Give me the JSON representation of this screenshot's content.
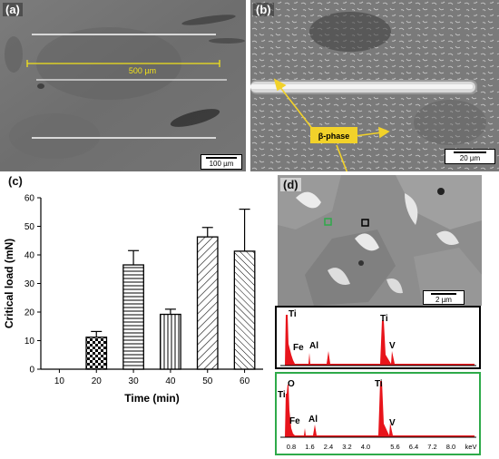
{
  "panels": {
    "a": {
      "label": "(a)",
      "measure": "500 µm",
      "scale": "100 µm"
    },
    "b": {
      "label": "(b)",
      "callout": "β-phase",
      "scale": "20 µm"
    },
    "c": {
      "label": "(c)"
    },
    "d": {
      "label": "(d)",
      "scale": "2 µm"
    }
  },
  "chart_data": {
    "type": "bar",
    "xlabel": "Time (min)",
    "ylabel": "Critical load (mN)",
    "categories": [
      "10",
      "20",
      "30",
      "40",
      "50",
      "60"
    ],
    "values": [
      0,
      11.2,
      36.5,
      19.2,
      46.3,
      41.3
    ],
    "errors": [
      0,
      2.0,
      5.0,
      1.8,
      3.3,
      14.7
    ],
    "ylim": [
      0,
      60
    ],
    "yticks": [
      "0",
      "10",
      "20",
      "30",
      "40",
      "50",
      "60"
    ],
    "patterns": [
      "none",
      "checker",
      "horizontal",
      "vertical",
      "diagonal",
      "diagonal-fine"
    ]
  },
  "eds": {
    "spectrum1": {
      "labels": [
        "Ti",
        "Fe",
        "Al",
        "Ti",
        "V"
      ],
      "border": "#000000"
    },
    "spectrum2": {
      "labels": [
        "Ti",
        "O",
        "Fe",
        "Al",
        "Ti",
        "V"
      ],
      "border": "#2eaa4a"
    },
    "axis_ticks": [
      "0.8",
      "1.6",
      "2.4",
      "3.2",
      "4.0",
      "5.6",
      "6.4",
      "7.2",
      "8.0"
    ],
    "axis_unit": "keV",
    "fill_color": "#e8141b"
  },
  "colors": {
    "measure": "#f2e21a",
    "callout_bg": "#f2d22a",
    "callout_arrow": "#f2d22a"
  }
}
